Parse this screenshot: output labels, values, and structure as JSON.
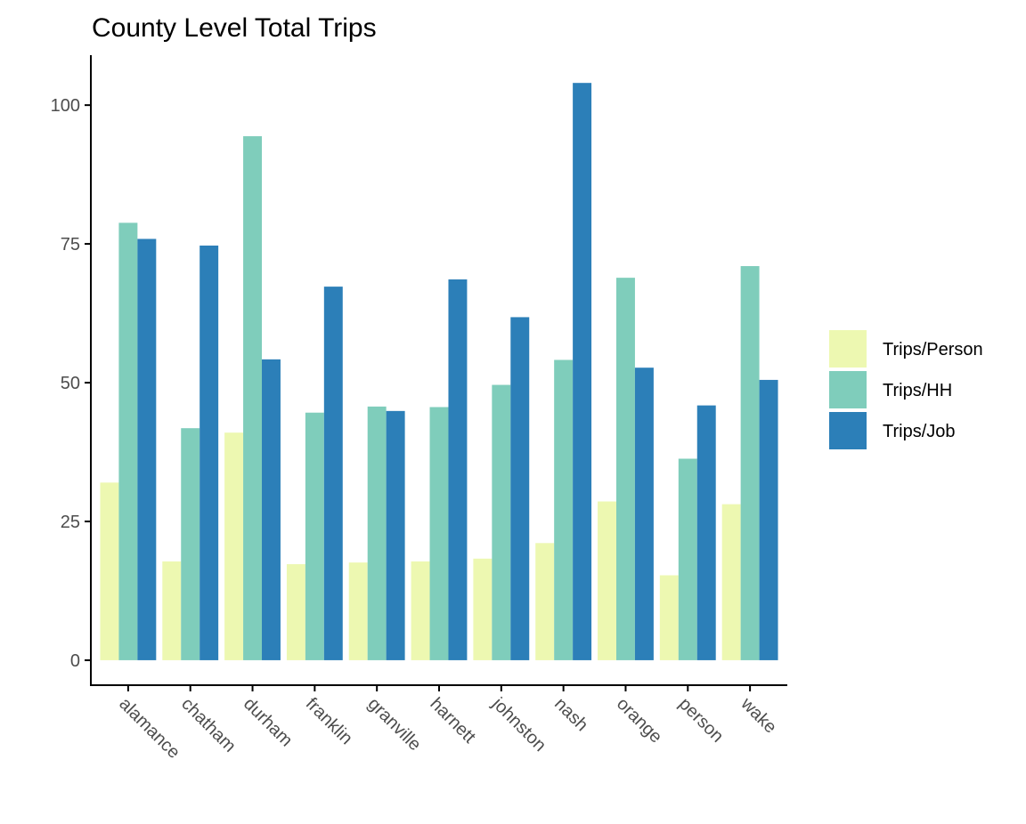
{
  "chart_data": {
    "type": "bar",
    "title": "County Level Total Trips",
    "xlabel": "",
    "ylabel": "",
    "categories": [
      "alamance",
      "chatham",
      "durham",
      "franklin",
      "granville",
      "harnett",
      "johnston",
      "nash",
      "orange",
      "person",
      "wake"
    ],
    "series": [
      {
        "name": "Trips/Person",
        "color": "#edf8b1",
        "values": [
          32.0,
          17.8,
          41.0,
          17.3,
          17.6,
          17.8,
          18.3,
          21.1,
          28.6,
          15.3,
          28.1
        ]
      },
      {
        "name": "Trips/HH",
        "color": "#7fcdbb",
        "values": [
          78.8,
          41.8,
          94.4,
          44.6,
          45.7,
          45.6,
          49.6,
          54.1,
          68.9,
          36.3,
          71.0
        ]
      },
      {
        "name": "Trips/Job",
        "color": "#2c7fb8",
        "values": [
          75.9,
          74.7,
          54.2,
          67.3,
          44.9,
          68.6,
          61.8,
          104.0,
          52.7,
          45.9,
          50.5
        ]
      }
    ],
    "yticks": [
      0,
      25,
      50,
      75,
      100
    ],
    "ylim": [
      -4.5,
      109
    ],
    "grid": false,
    "legend_position": "right"
  }
}
